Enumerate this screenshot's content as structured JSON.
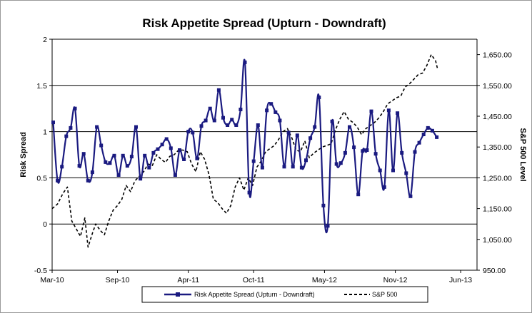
{
  "chart_data": {
    "type": "line",
    "title": "Risk Appetite Spread (Upturn - Downdraft)",
    "ylabel": "Risk Spread",
    "y2label": "S&P 500 Level",
    "xlabel": "",
    "ylim": [
      -0.5,
      2
    ],
    "y2lim": [
      950,
      1700
    ],
    "x_range": [
      0,
      39
    ],
    "yticks": [
      "-0.5",
      "0",
      "0.5",
      "1",
      "1.5",
      "2"
    ],
    "y2ticks": [
      "950.00",
      "1,050.00",
      "1,150.00",
      "1,250.00",
      "1,350.00",
      "1,450.00",
      "1,550.00",
      "1,650.00"
    ],
    "xtick_labels": [
      "Mar-10",
      "Sep-10",
      "Apr-11",
      "Oct-11",
      "May-12",
      "Nov-12",
      "Jun-13"
    ],
    "xtick_positions": [
      0,
      6,
      12.5,
      18.5,
      25,
      31.5,
      37.5
    ],
    "grid": "horizontal major lines",
    "legend_position": "bottom",
    "series": [
      {
        "name": "Risk Appetite Spread (Upturn - Downdraft)",
        "axis": "left",
        "color": "#1a1a80",
        "marker": "square",
        "points": [
          [
            0.1,
            1.1
          ],
          [
            0.5,
            0.47
          ],
          [
            0.9,
            0.62
          ],
          [
            1.3,
            0.95
          ],
          [
            1.7,
            1.04
          ],
          [
            2.1,
            1.25
          ],
          [
            2.5,
            0.63
          ],
          [
            2.9,
            0.76
          ],
          [
            3.3,
            0.47
          ],
          [
            3.7,
            0.56
          ],
          [
            4.1,
            1.05
          ],
          [
            4.5,
            0.85
          ],
          [
            4.9,
            0.67
          ],
          [
            5.3,
            0.66
          ],
          [
            5.7,
            0.74
          ],
          [
            6.1,
            0.53
          ],
          [
            6.5,
            0.74
          ],
          [
            6.9,
            0.63
          ],
          [
            7.3,
            0.73
          ],
          [
            7.7,
            1.05
          ],
          [
            8.1,
            0.49
          ],
          [
            8.5,
            0.74
          ],
          [
            8.9,
            0.61
          ],
          [
            9.3,
            0.77
          ],
          [
            9.7,
            0.81
          ],
          [
            10.1,
            0.86
          ],
          [
            10.5,
            0.92
          ],
          [
            10.9,
            0.82
          ],
          [
            11.3,
            0.53
          ],
          [
            11.7,
            0.8
          ],
          [
            12.1,
            0.7
          ],
          [
            12.5,
            1.0
          ],
          [
            12.9,
            0.99
          ],
          [
            13.3,
            0.71
          ],
          [
            13.7,
            1.06
          ],
          [
            14.1,
            1.12
          ],
          [
            14.5,
            1.25
          ],
          [
            14.9,
            1.12
          ],
          [
            15.3,
            1.45
          ],
          [
            15.7,
            1.15
          ],
          [
            16.1,
            1.07
          ],
          [
            16.5,
            1.13
          ],
          [
            16.9,
            1.07
          ],
          [
            17.3,
            1.24
          ],
          [
            17.7,
            1.75
          ],
          [
            18.1,
            0.34
          ],
          [
            18.5,
            0.68
          ],
          [
            18.9,
            1.07
          ],
          [
            19.3,
            0.61
          ],
          [
            19.7,
            1.23
          ],
          [
            20.1,
            1.3
          ],
          [
            20.5,
            1.21
          ],
          [
            20.9,
            1.12
          ],
          [
            21.3,
            0.62
          ],
          [
            21.7,
            0.99
          ],
          [
            22.1,
            0.62
          ],
          [
            22.5,
            0.96
          ],
          [
            22.9,
            0.61
          ],
          [
            23.3,
            0.69
          ],
          [
            23.7,
            0.93
          ],
          [
            24.1,
            1.05
          ],
          [
            24.5,
            1.37
          ],
          [
            24.9,
            0.2
          ],
          [
            25.3,
            -0.02
          ],
          [
            25.7,
            1.11
          ],
          [
            26.1,
            0.65
          ],
          [
            26.5,
            0.66
          ],
          [
            26.9,
            0.77
          ],
          [
            27.3,
            1.05
          ],
          [
            27.7,
            0.83
          ],
          [
            28.1,
            0.32
          ],
          [
            28.5,
            0.79
          ],
          [
            28.9,
            0.8
          ],
          [
            29.3,
            1.22
          ],
          [
            29.7,
            0.76
          ],
          [
            30.1,
            0.58
          ],
          [
            30.5,
            0.4
          ],
          [
            30.9,
            1.23
          ],
          [
            31.3,
            0.58
          ],
          [
            31.7,
            1.2
          ],
          [
            32.1,
            0.77
          ],
          [
            32.5,
            0.55
          ],
          [
            32.9,
            0.3
          ],
          [
            33.3,
            0.78
          ],
          [
            33.7,
            0.88
          ],
          [
            34.1,
            0.97
          ],
          [
            34.5,
            1.04
          ],
          [
            34.9,
            1.01
          ],
          [
            35.3,
            0.94
          ]
        ]
      },
      {
        "name": "S&P 500",
        "axis": "right",
        "color": "#000000",
        "style": "dashed",
        "points": [
          [
            0.0,
            1150
          ],
          [
            0.5,
            1165
          ],
          [
            1.0,
            1200
          ],
          [
            1.4,
            1220
          ],
          [
            1.8,
            1110
          ],
          [
            2.2,
            1085
          ],
          [
            2.6,
            1060
          ],
          [
            3.0,
            1120
          ],
          [
            3.3,
            1025
          ],
          [
            3.7,
            1070
          ],
          [
            4.0,
            1100
          ],
          [
            4.4,
            1080
          ],
          [
            4.8,
            1065
          ],
          [
            5.2,
            1110
          ],
          [
            5.6,
            1145
          ],
          [
            6.0,
            1160
          ],
          [
            6.4,
            1180
          ],
          [
            6.8,
            1225
          ],
          [
            7.2,
            1205
          ],
          [
            7.6,
            1240
          ],
          [
            8.0,
            1255
          ],
          [
            8.4,
            1270
          ],
          [
            8.8,
            1295
          ],
          [
            9.2,
            1290
          ],
          [
            9.6,
            1325
          ],
          [
            10.0,
            1310
          ],
          [
            10.4,
            1300
          ],
          [
            10.8,
            1320
          ],
          [
            11.2,
            1325
          ],
          [
            11.6,
            1340
          ],
          [
            12.0,
            1340
          ],
          [
            12.4,
            1335
          ],
          [
            12.8,
            1295
          ],
          [
            13.2,
            1270
          ],
          [
            13.6,
            1335
          ],
          [
            14.0,
            1310
          ],
          [
            14.4,
            1260
          ],
          [
            14.8,
            1180
          ],
          [
            15.2,
            1170
          ],
          [
            15.6,
            1150
          ],
          [
            16.0,
            1135
          ],
          [
            16.4,
            1160
          ],
          [
            16.8,
            1220
          ],
          [
            17.2,
            1250
          ],
          [
            17.6,
            1210
          ],
          [
            18.0,
            1250
          ],
          [
            18.4,
            1225
          ],
          [
            18.8,
            1285
          ],
          [
            19.2,
            1305
          ],
          [
            19.6,
            1335
          ],
          [
            20.0,
            1345
          ],
          [
            20.4,
            1355
          ],
          [
            20.8,
            1375
          ],
          [
            21.2,
            1400
          ],
          [
            21.6,
            1410
          ],
          [
            22.0,
            1380
          ],
          [
            22.4,
            1340
          ],
          [
            22.8,
            1335
          ],
          [
            23.2,
            1370
          ],
          [
            23.6,
            1315
          ],
          [
            24.0,
            1330
          ],
          [
            24.4,
            1340
          ],
          [
            24.8,
            1350
          ],
          [
            25.2,
            1355
          ],
          [
            25.6,
            1360
          ],
          [
            26.0,
            1405
          ],
          [
            26.4,
            1440
          ],
          [
            26.8,
            1465
          ],
          [
            27.2,
            1440
          ],
          [
            27.6,
            1430
          ],
          [
            28.0,
            1415
          ],
          [
            28.4,
            1390
          ],
          [
            28.8,
            1410
          ],
          [
            29.2,
            1420
          ],
          [
            29.6,
            1430
          ],
          [
            30.0,
            1445
          ],
          [
            30.4,
            1465
          ],
          [
            30.8,
            1490
          ],
          [
            31.2,
            1500
          ],
          [
            31.6,
            1510
          ],
          [
            32.0,
            1515
          ],
          [
            32.4,
            1545
          ],
          [
            32.8,
            1555
          ],
          [
            33.2,
            1570
          ],
          [
            33.6,
            1585
          ],
          [
            34.0,
            1590
          ],
          [
            34.4,
            1615
          ],
          [
            34.8,
            1650
          ],
          [
            35.2,
            1630
          ],
          [
            35.4,
            1600
          ]
        ]
      }
    ]
  }
}
